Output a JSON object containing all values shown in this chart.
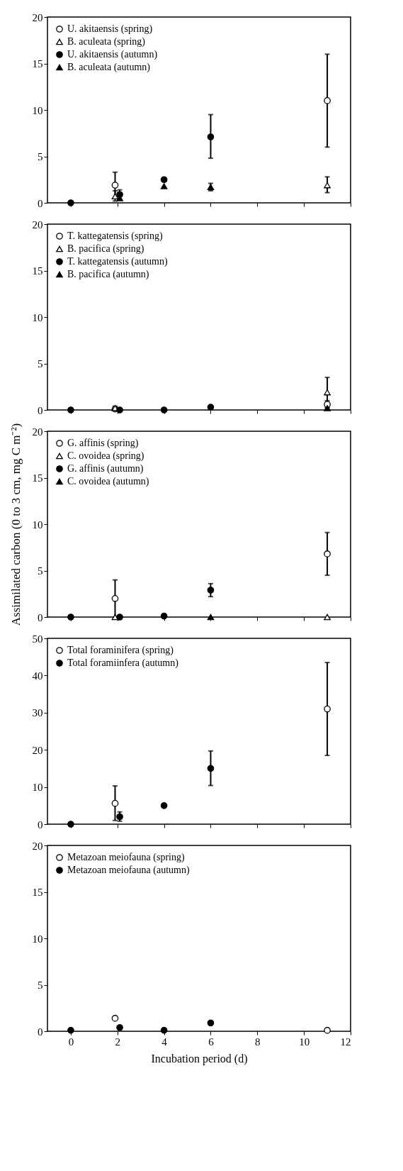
{
  "chart_data": [
    {
      "type": "scatter",
      "xlim": [
        -1,
        12
      ],
      "xticks": [
        0,
        2,
        4,
        6,
        8,
        10,
        12
      ],
      "ylim": [
        0,
        20
      ],
      "yticks": [
        0,
        5,
        10,
        15,
        20
      ],
      "tick_labels": "y",
      "legend": "top left",
      "series": [
        {
          "name": "U. akitaensis (spring)",
          "marker": "circle",
          "color": "#ffffff",
          "x": [
            1.9,
            11
          ],
          "values": [
            1.9,
            11
          ],
          "errors": [
            [
              0.5,
              3.3
            ],
            [
              6,
              16
            ]
          ]
        },
        {
          "name": "B. aculeata (spring)",
          "marker": "triangle",
          "color": "#ffffff",
          "x": [
            1.9,
            11
          ],
          "values": [
            0.7,
            1.9
          ],
          "errors": [
            [
              0.2,
              1.3
            ],
            [
              1.1,
              2.8
            ]
          ]
        },
        {
          "name": "U. akitaensis (autumn)",
          "marker": "circle",
          "color": "#000000",
          "x": [
            0,
            2.1,
            4,
            6
          ],
          "values": [
            0,
            0.9,
            2.5,
            7.1
          ],
          "errors": [
            null,
            [
              0.4,
              1.4
            ],
            null,
            [
              4.8,
              9.5
            ]
          ]
        },
        {
          "name": "B. aculeata (autumn)",
          "marker": "triangle",
          "color": "#000000",
          "x": [
            2.1,
            4,
            6
          ],
          "values": [
            0.5,
            1.8,
            1.7
          ],
          "errors": [
            null,
            null,
            [
              1.3,
              2.1
            ]
          ]
        }
      ]
    },
    {
      "type": "scatter",
      "xlim": [
        -1,
        12
      ],
      "xticks": [
        0,
        2,
        4,
        6,
        8,
        10,
        12
      ],
      "ylim": [
        0,
        20
      ],
      "yticks": [
        0,
        5,
        10,
        15,
        20
      ],
      "tick_labels": "y",
      "legend": "top left",
      "series": [
        {
          "name": "T. kattegatensis (spring)",
          "marker": "circle",
          "color": "#ffffff",
          "x": [
            1.9,
            11
          ],
          "values": [
            0.1,
            0.6
          ],
          "errors": [
            null,
            [
              0.2,
              1.0
            ]
          ]
        },
        {
          "name": "B. pacifica (spring)",
          "marker": "triangle",
          "color": "#ffffff",
          "x": [
            1.9,
            11
          ],
          "values": [
            0.2,
            1.9
          ],
          "errors": [
            [
              0,
              0.4
            ],
            [
              0.3,
              3.5
            ]
          ]
        },
        {
          "name": "T. kattegatensis (autumn)",
          "marker": "circle",
          "color": "#000000",
          "x": [
            0,
            2.1,
            4,
            6
          ],
          "values": [
            0,
            0,
            0,
            0.3
          ],
          "errors": [
            null,
            null,
            null,
            null
          ]
        },
        {
          "name": "B. pacifica (autumn)",
          "marker": "triangle",
          "color": "#000000",
          "x": [
            11
          ],
          "values": [
            0.2
          ],
          "errors": [
            null
          ]
        }
      ]
    },
    {
      "type": "scatter",
      "xlim": [
        -1,
        12
      ],
      "xticks": [
        0,
        2,
        4,
        6,
        8,
        10,
        12
      ],
      "ylim": [
        0,
        20
      ],
      "yticks": [
        0,
        5,
        10,
        15,
        20
      ],
      "tick_labels": "y",
      "legend": "top left",
      "ylabel": "Assimilated carbon (0 to 3 cm, mg C m⁻²)",
      "series": [
        {
          "name": "G. affinis (spring)",
          "marker": "circle",
          "color": "#ffffff",
          "x": [
            1.9,
            11
          ],
          "values": [
            2.0,
            6.8
          ],
          "errors": [
            [
              0,
              4.0
            ],
            [
              4.5,
              9.1
            ]
          ]
        },
        {
          "name": "C. ovoidea (spring)",
          "marker": "triangle",
          "color": "#ffffff",
          "x": [
            1.9,
            11
          ],
          "values": [
            0,
            0
          ],
          "errors": [
            null,
            null
          ]
        },
        {
          "name": "G. affinis (autumn)",
          "marker": "circle",
          "color": "#000000",
          "x": [
            0,
            2.1,
            4,
            6
          ],
          "values": [
            0,
            0,
            0.1,
            2.9
          ],
          "errors": [
            null,
            null,
            null,
            [
              2.2,
              3.6
            ]
          ]
        },
        {
          "name": "C. ovoidea (autumn)",
          "marker": "triangle",
          "color": "#000000",
          "x": [
            6
          ],
          "values": [
            0
          ],
          "errors": [
            null
          ]
        }
      ]
    },
    {
      "type": "scatter",
      "xlim": [
        -1,
        12
      ],
      "xticks": [
        0,
        2,
        4,
        6,
        8,
        10,
        12
      ],
      "ylim": [
        0,
        50
      ],
      "yticks": [
        0,
        10,
        20,
        30,
        40,
        50
      ],
      "tick_labels": "y",
      "legend": "top left",
      "series": [
        {
          "name": "Total foraminifera (spring)",
          "marker": "circle",
          "color": "#ffffff",
          "x": [
            1.9,
            11
          ],
          "values": [
            5.6,
            31
          ],
          "errors": [
            [
              1,
              10.3
            ],
            [
              18.5,
              43.5
            ]
          ]
        },
        {
          "name": "Total foramiinfera (autumn)",
          "marker": "circle",
          "color": "#000000",
          "x": [
            0,
            2.1,
            4,
            6
          ],
          "values": [
            0,
            2,
            5,
            15
          ],
          "errors": [
            null,
            [
              0.8,
              3.3
            ],
            null,
            [
              10.4,
              19.7
            ]
          ]
        }
      ]
    },
    {
      "type": "scatter",
      "xlim": [
        -1,
        12
      ],
      "xticks": [
        0,
        2,
        4,
        6,
        8,
        10,
        12
      ],
      "ylim": [
        0,
        20
      ],
      "yticks": [
        0,
        5,
        10,
        15,
        20
      ],
      "xlabel": "Incubation period (d)",
      "legend": "top left",
      "series": [
        {
          "name": "Metazoan meiofauna (spring)",
          "marker": "circle",
          "color": "#ffffff",
          "x": [
            1.9,
            11
          ],
          "values": [
            1.4,
            0.1
          ],
          "errors": [
            null,
            null
          ]
        },
        {
          "name": "Metazoan meiofauna (autumn)",
          "marker": "circle",
          "color": "#000000",
          "x": [
            0,
            2.1,
            4,
            6
          ],
          "values": [
            0.1,
            0.4,
            0.1,
            0.9
          ],
          "errors": [
            null,
            null,
            null,
            null
          ]
        }
      ]
    }
  ]
}
